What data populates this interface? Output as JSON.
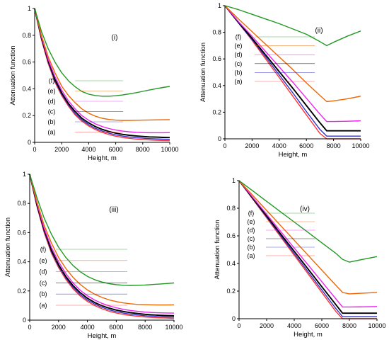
{
  "chart_data": [
    {
      "type": "line",
      "panel_label": "(i)",
      "xlabel": "Height, m",
      "ylabel": "Attenuation function",
      "xlim": [
        0,
        10000
      ],
      "ylim": [
        0,
        1
      ],
      "xticks": [
        "0",
        "2000",
        "4000",
        "6000",
        "8000",
        "10000"
      ],
      "yticks": [
        "0",
        "0.2",
        "0.4",
        "0.6",
        "0.8",
        "1"
      ],
      "legend_labels": [
        "(f)",
        "(e)",
        "(d)",
        "(c)",
        "(b)",
        "(a)"
      ],
      "legend_placement": "left, inside plot",
      "x": [
        0,
        500,
        1000,
        1500,
        2000,
        2500,
        3000,
        3500,
        4000,
        4500,
        5000,
        5500,
        6000,
        6500,
        7000,
        7500,
        8000,
        8500,
        9000,
        9500,
        10000
      ],
      "series": [
        {
          "name": "(a)",
          "color": "#ff3333",
          "values": [
            1.0,
            0.77,
            0.59,
            0.45,
            0.35,
            0.27,
            0.205,
            0.158,
            0.122,
            0.095,
            0.074,
            0.058,
            0.046,
            0.037,
            0.03,
            0.025,
            0.021,
            0.018,
            0.016,
            0.014,
            0.013
          ]
        },
        {
          "name": "(b)",
          "color": "#3333cc",
          "values": [
            1.0,
            0.78,
            0.6,
            0.46,
            0.36,
            0.28,
            0.215,
            0.168,
            0.132,
            0.105,
            0.084,
            0.068,
            0.056,
            0.047,
            0.04,
            0.035,
            0.031,
            0.028,
            0.026,
            0.024,
            0.023
          ]
        },
        {
          "name": "(c)",
          "color": "#000000",
          "values": [
            1.0,
            0.78,
            0.61,
            0.47,
            0.37,
            0.29,
            0.23,
            0.18,
            0.145,
            0.118,
            0.097,
            0.081,
            0.069,
            0.06,
            0.053,
            0.048,
            0.044,
            0.041,
            0.039,
            0.037,
            0.036
          ]
        },
        {
          "name": "(d)",
          "color": "#ee22ee",
          "values": [
            1.0,
            0.79,
            0.62,
            0.49,
            0.39,
            0.31,
            0.25,
            0.2,
            0.165,
            0.138,
            0.118,
            0.103,
            0.092,
            0.084,
            0.079,
            0.075,
            0.073,
            0.072,
            0.072,
            0.072,
            0.073
          ]
        },
        {
          "name": "(e)",
          "color": "#ee6600",
          "values": [
            1.0,
            0.8,
            0.64,
            0.52,
            0.42,
            0.35,
            0.295,
            0.25,
            0.218,
            0.195,
            0.18,
            0.171,
            0.166,
            0.164,
            0.164,
            0.165,
            0.166,
            0.167,
            0.168,
            0.169,
            0.17
          ]
        },
        {
          "name": "(f)",
          "color": "#229922",
          "values": [
            1.0,
            0.83,
            0.7,
            0.6,
            0.52,
            0.46,
            0.415,
            0.38,
            0.36,
            0.35,
            0.345,
            0.345,
            0.348,
            0.354,
            0.362,
            0.371,
            0.381,
            0.391,
            0.401,
            0.41,
            0.418
          ]
        }
      ]
    },
    {
      "type": "line",
      "panel_label": "(ii)",
      "xlabel": "Height, m",
      "ylabel": "Attenuation function",
      "xlim": [
        0,
        10000
      ],
      "ylim": [
        0,
        1
      ],
      "xticks": [
        "0",
        "2000",
        "4000",
        "6000",
        "8000",
        "10000"
      ],
      "yticks": [
        "0",
        "0.2",
        "0.4",
        "0.6",
        "0.8",
        "1"
      ],
      "legend_labels": [
        "(f)",
        "(e)",
        "(d)",
        "(c)",
        "(b)",
        "(a)"
      ],
      "legend_placement": "left, inside plot",
      "x": [
        0,
        1000,
        2000,
        3000,
        4000,
        5000,
        6000,
        7000,
        7500,
        8000,
        9000,
        10000
      ],
      "series": [
        {
          "name": "(a)",
          "color": "#ff3333",
          "values": [
            1.0,
            0.87,
            0.74,
            0.6,
            0.46,
            0.32,
            0.18,
            0.04,
            0.0,
            0.0,
            0.0,
            0.0
          ]
        },
        {
          "name": "(b)",
          "color": "#3333cc",
          "values": [
            1.0,
            0.87,
            0.745,
            0.615,
            0.48,
            0.345,
            0.205,
            0.07,
            0.02,
            0.02,
            0.02,
            0.02
          ]
        },
        {
          "name": "(c)",
          "color": "#000000",
          "values": [
            1.0,
            0.875,
            0.755,
            0.63,
            0.505,
            0.38,
            0.25,
            0.12,
            0.06,
            0.06,
            0.06,
            0.06
          ]
        },
        {
          "name": "(d)",
          "color": "#ee22ee",
          "values": [
            1.0,
            0.88,
            0.77,
            0.655,
            0.54,
            0.425,
            0.305,
            0.185,
            0.13,
            0.13,
            0.132,
            0.135
          ]
        },
        {
          "name": "(e)",
          "color": "#ee6600",
          "values": [
            1.0,
            0.9,
            0.805,
            0.71,
            0.615,
            0.52,
            0.42,
            0.325,
            0.28,
            0.285,
            0.3,
            0.32
          ]
        },
        {
          "name": "(f)",
          "color": "#229922",
          "values": [
            1.0,
            0.97,
            0.935,
            0.9,
            0.865,
            0.825,
            0.785,
            0.73,
            0.7,
            0.725,
            0.77,
            0.81
          ]
        }
      ]
    },
    {
      "type": "line",
      "panel_label": "(iii)",
      "xlabel": "Height, m",
      "ylabel": "Attenuation function",
      "xlim": [
        0,
        10000
      ],
      "ylim": [
        0,
        1
      ],
      "xticks": [
        "0",
        "2000",
        "4000",
        "6000",
        "8000",
        "10000"
      ],
      "yticks": [
        "0",
        "0.2",
        "0.4",
        "0.6",
        "0.8",
        "1"
      ],
      "legend_labels": [
        "(f)",
        "(e)",
        "(d)",
        "(c)",
        "(b)",
        "(a)"
      ],
      "legend_placement": "left, inside plot",
      "x": [
        0,
        500,
        1000,
        1500,
        2000,
        2500,
        3000,
        3500,
        4000,
        4500,
        5000,
        5500,
        6000,
        6500,
        7000,
        7500,
        8000,
        8500,
        9000,
        9500,
        10000
      ],
      "series": [
        {
          "name": "(a)",
          "color": "#ff3333",
          "values": [
            1.0,
            0.78,
            0.6,
            0.46,
            0.36,
            0.28,
            0.215,
            0.165,
            0.128,
            0.1,
            0.078,
            0.061,
            0.049,
            0.039,
            0.032,
            0.026,
            0.022,
            0.018,
            0.016,
            0.014,
            0.012
          ]
        },
        {
          "name": "(b)",
          "color": "#3333cc",
          "values": [
            1.0,
            0.785,
            0.61,
            0.47,
            0.37,
            0.29,
            0.225,
            0.175,
            0.138,
            0.11,
            0.088,
            0.071,
            0.058,
            0.048,
            0.041,
            0.035,
            0.03,
            0.027,
            0.024,
            0.022,
            0.021
          ]
        },
        {
          "name": "(c)",
          "color": "#000000",
          "values": [
            1.0,
            0.79,
            0.62,
            0.48,
            0.38,
            0.3,
            0.237,
            0.188,
            0.15,
            0.121,
            0.099,
            0.082,
            0.069,
            0.059,
            0.051,
            0.045,
            0.04,
            0.036,
            0.033,
            0.031,
            0.03
          ]
        },
        {
          "name": "(d)",
          "color": "#ee22ee",
          "values": [
            1.0,
            0.8,
            0.63,
            0.5,
            0.4,
            0.32,
            0.255,
            0.205,
            0.167,
            0.138,
            0.115,
            0.098,
            0.085,
            0.074,
            0.066,
            0.06,
            0.055,
            0.052,
            0.05,
            0.049,
            0.048
          ]
        },
        {
          "name": "(e)",
          "color": "#ee6600",
          "values": [
            1.0,
            0.81,
            0.65,
            0.53,
            0.43,
            0.355,
            0.293,
            0.245,
            0.207,
            0.178,
            0.156,
            0.139,
            0.127,
            0.118,
            0.112,
            0.108,
            0.106,
            0.105,
            0.104,
            0.104,
            0.105
          ]
        },
        {
          "name": "(f)",
          "color": "#229922",
          "values": [
            1.0,
            0.84,
            0.7,
            0.59,
            0.5,
            0.43,
            0.375,
            0.332,
            0.3,
            0.277,
            0.261,
            0.25,
            0.243,
            0.239,
            0.238,
            0.239,
            0.241,
            0.244,
            0.247,
            0.251,
            0.255
          ]
        }
      ]
    },
    {
      "type": "line",
      "panel_label": "(iv)",
      "xlabel": "Height, m",
      "ylabel": "Attenuation function",
      "xlim": [
        0,
        10000
      ],
      "ylim": [
        0,
        1
      ],
      "xticks": [
        "0",
        "2000",
        "4000",
        "6000",
        "8000",
        "10000"
      ],
      "yticks": [
        "0",
        "0.2",
        "0.4",
        "0.6",
        "0.8",
        "1"
      ],
      "legend_labels": [
        "(f)",
        "(e)",
        "(d)",
        "(c)",
        "(b)",
        "(a)"
      ],
      "legend_placement": "left, inside plot",
      "x": [
        0,
        1000,
        2000,
        3000,
        4000,
        5000,
        6000,
        7000,
        7500,
        8000,
        9000,
        10000
      ],
      "series": [
        {
          "name": "(a)",
          "color": "#ff3333",
          "values": [
            1.0,
            0.865,
            0.73,
            0.595,
            0.46,
            0.325,
            0.19,
            0.055,
            0.0,
            0.0,
            0.0,
            0.0
          ]
        },
        {
          "name": "(b)",
          "color": "#3333cc",
          "values": [
            1.0,
            0.868,
            0.736,
            0.604,
            0.472,
            0.34,
            0.208,
            0.076,
            0.015,
            0.015,
            0.015,
            0.015
          ]
        },
        {
          "name": "(c)",
          "color": "#000000",
          "values": [
            1.0,
            0.872,
            0.744,
            0.616,
            0.488,
            0.36,
            0.232,
            0.104,
            0.04,
            0.04,
            0.04,
            0.04
          ]
        },
        {
          "name": "(d)",
          "color": "#ee22ee",
          "values": [
            1.0,
            0.878,
            0.756,
            0.634,
            0.512,
            0.39,
            0.268,
            0.146,
            0.085,
            0.085,
            0.086,
            0.088
          ]
        },
        {
          "name": "(e)",
          "color": "#ee6600",
          "values": [
            1.0,
            0.892,
            0.784,
            0.676,
            0.568,
            0.46,
            0.352,
            0.244,
            0.19,
            0.18,
            0.185,
            0.19
          ]
        },
        {
          "name": "(f)",
          "color": "#229922",
          "values": [
            1.0,
            0.925,
            0.85,
            0.775,
            0.7,
            0.625,
            0.55,
            0.475,
            0.43,
            0.41,
            0.43,
            0.45
          ]
        }
      ]
    }
  ]
}
